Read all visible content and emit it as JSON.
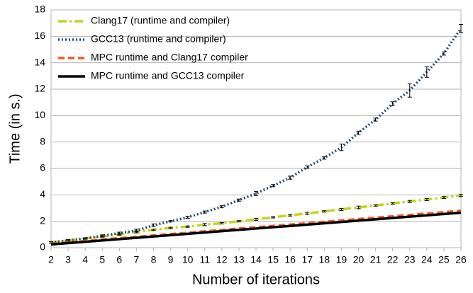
{
  "chart_data": {
    "type": "line",
    "x_label": "Number of iterations",
    "y_label": "Time (in s.)",
    "x": [
      2,
      3,
      4,
      5,
      6,
      7,
      8,
      9,
      10,
      11,
      12,
      13,
      14,
      15,
      16,
      17,
      18,
      19,
      20,
      21,
      22,
      23,
      24,
      25,
      26
    ],
    "xlim": [
      2,
      26
    ],
    "xticks": [
      2,
      3,
      4,
      5,
      6,
      7,
      8,
      9,
      10,
      11,
      12,
      13,
      14,
      15,
      16,
      17,
      18,
      19,
      20,
      21,
      22,
      23,
      24,
      25,
      26
    ],
    "ylim": [
      0,
      18
    ],
    "yticks": [
      0,
      2,
      4,
      6,
      8,
      10,
      12,
      14,
      16,
      18
    ],
    "grid": true,
    "legend": "top-left",
    "series": [
      {
        "name": "Clang17 (runtime and compiler)",
        "color": "#c3d41f",
        "dash": "12 4 3 4",
        "values": [
          0.4,
          0.55,
          0.7,
          0.85,
          1.0,
          1.2,
          1.35,
          1.5,
          1.6,
          1.75,
          1.85,
          2.0,
          2.15,
          2.3,
          2.45,
          2.6,
          2.75,
          2.9,
          3.05,
          3.2,
          3.35,
          3.5,
          3.65,
          3.8,
          3.95
        ],
        "errors": [
          0.05,
          0.05,
          0.05,
          0.05,
          0.05,
          0.08,
          0.05,
          0.05,
          0.05,
          0.08,
          0.05,
          0.05,
          0.08,
          0.05,
          0.05,
          0.08,
          0.05,
          0.08,
          0.1,
          0.05,
          0.05,
          0.08,
          0.08,
          0.08,
          0.08
        ]
      },
      {
        "name": "GCC13 (runtime and compiler)",
        "color": "#1f4e79",
        "dash": "2 3",
        "values": [
          0.4,
          0.55,
          0.7,
          0.9,
          1.1,
          1.3,
          1.7,
          2.0,
          2.3,
          2.7,
          3.1,
          3.6,
          4.1,
          4.7,
          5.3,
          6.1,
          6.8,
          7.6,
          8.7,
          9.7,
          10.9,
          11.9,
          13.3,
          14.7,
          16.6
        ],
        "errors": [
          0.05,
          0.05,
          0.05,
          0.08,
          0.08,
          0.1,
          0.1,
          0.05,
          0.08,
          0.08,
          0.08,
          0.08,
          0.15,
          0.08,
          0.12,
          0.1,
          0.1,
          0.25,
          0.12,
          0.12,
          0.15,
          0.5,
          0.4,
          0.12,
          0.3
        ]
      },
      {
        "name": "MPC runtime and Clang17 compiler",
        "color": "#f05a28",
        "dash": "9 5",
        "values": [
          0.3,
          0.4,
          0.5,
          0.62,
          0.72,
          0.82,
          0.93,
          1.03,
          1.13,
          1.24,
          1.34,
          1.45,
          1.55,
          1.65,
          1.75,
          1.86,
          1.96,
          2.07,
          2.17,
          2.27,
          2.38,
          2.48,
          2.59,
          2.69,
          2.8
        ]
      },
      {
        "name": "MPC runtime and GCC13 compiler",
        "color": "#000000",
        "dash": "none",
        "values": [
          0.25,
          0.35,
          0.45,
          0.55,
          0.65,
          0.75,
          0.85,
          0.95,
          1.05,
          1.15,
          1.25,
          1.35,
          1.45,
          1.55,
          1.65,
          1.75,
          1.85,
          1.95,
          2.05,
          2.15,
          2.25,
          2.35,
          2.45,
          2.55,
          2.65
        ]
      }
    ]
  }
}
